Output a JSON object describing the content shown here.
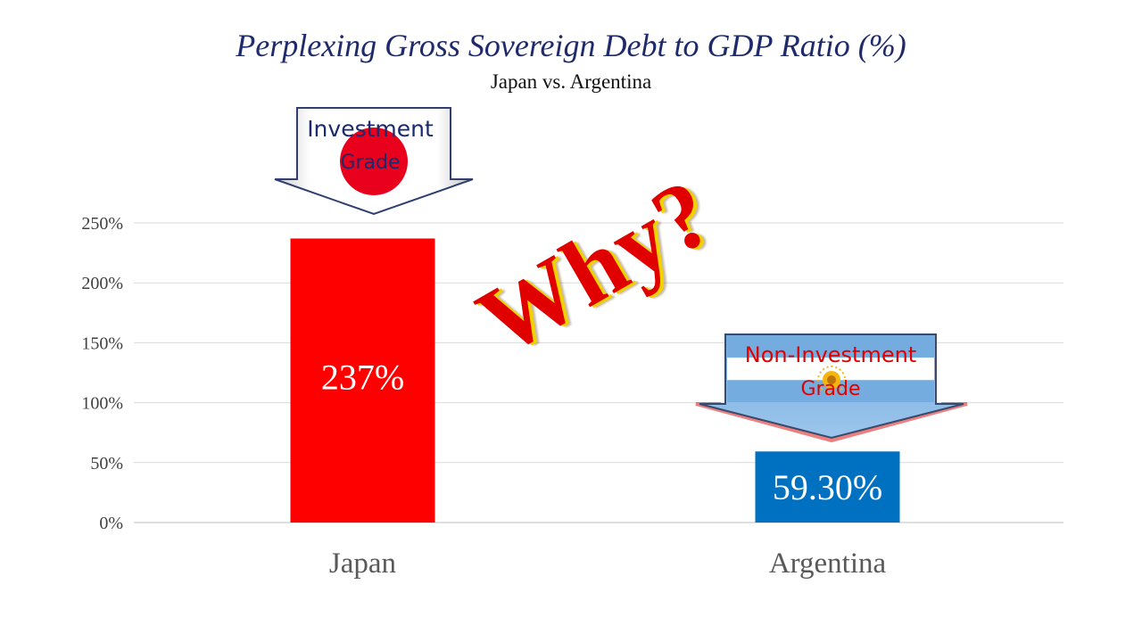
{
  "chart_data": {
    "type": "bar",
    "title": "Perplexing Gross Sovereign Debt to GDP Ratio (%)",
    "subtitle": "Japan vs. Argentina",
    "categories": [
      "Japan",
      "Argentina"
    ],
    "values": [
      237,
      59.3
    ],
    "data_labels": [
      "237%",
      "59.30%"
    ],
    "bar_colors": [
      "#ff0000",
      "#0070c0"
    ],
    "ylim": [
      0,
      250
    ],
    "yticks": [
      0,
      50,
      100,
      150,
      200,
      250
    ],
    "ytick_labels": [
      "0%",
      "50%",
      "100%",
      "150%",
      "200%",
      "250%"
    ],
    "grid": true,
    "annotations": {
      "why": "Why?",
      "japan_callout": [
        "Investment",
        "Grade"
      ],
      "argentina_callout": [
        "Non-Investment",
        "Grade"
      ]
    }
  },
  "colors": {
    "title": "#1f2a6b",
    "why_fill": "#e00000",
    "why_outline": "#f2d200",
    "argentina_sky": "#74acdf",
    "japan_disc": "#e8001c"
  },
  "icons": {
    "japan_callout_emblem": "red-sun-disc-icon",
    "argentina_callout_emblem": "sun-of-may-icon"
  }
}
